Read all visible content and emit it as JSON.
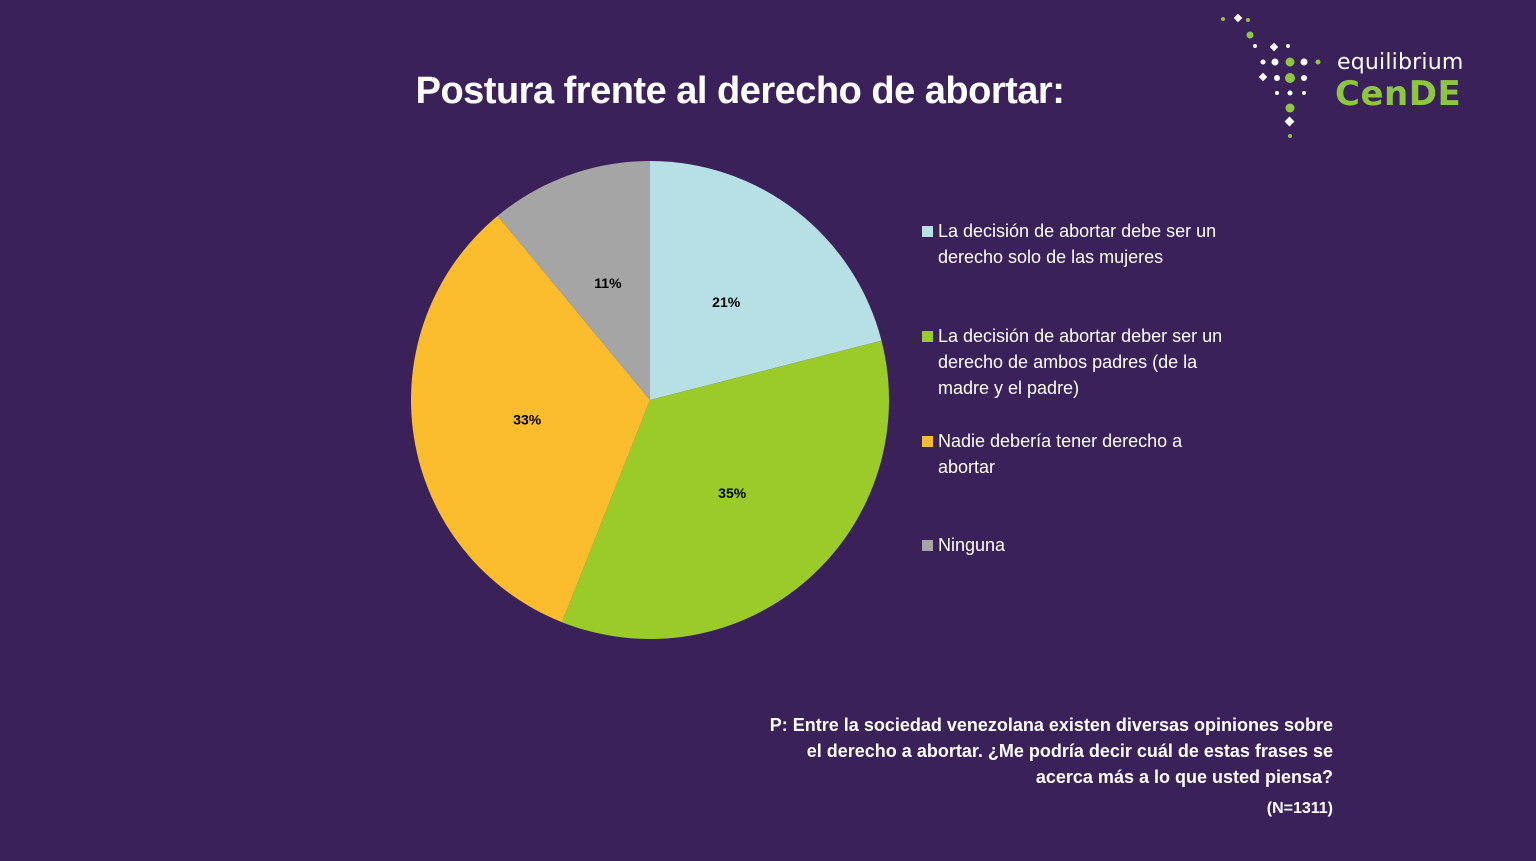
{
  "title": "Postura frente al derecho de abortar:",
  "logo": {
    "text_top": "equilibrium",
    "text_main": "CenDE"
  },
  "colors": {
    "background": "#3b2159",
    "logo_green": "#8dc63f"
  },
  "chart_data": {
    "type": "pie",
    "title": "Postura frente al derecho de abortar:",
    "slices": [
      {
        "label": "La decisión de abortar debe ser un derecho solo de las mujeres",
        "value": 21,
        "display": "21%",
        "color": "#b7dfe6"
      },
      {
        "label": "La decisión de abortar deber ser un derecho de ambos padres (de la madre y el padre)",
        "value": 35,
        "display": "35%",
        "color": "#9acb28"
      },
      {
        "label": "Nadie debería tener derecho a abortar",
        "value": 33,
        "display": "33%",
        "color": "#fbbd2e"
      },
      {
        "label": "Ninguna",
        "value": 11,
        "display": "11%",
        "color": "#a5a5a5"
      }
    ],
    "start_angle": "12 o'clock",
    "direction": "clockwise",
    "legend_position": "right"
  },
  "legend": {
    "items": [
      {
        "label": "La decisión de abortar debe ser un derecho solo de las mujeres"
      },
      {
        "label": "La decisión de abortar deber ser un derecho de ambos padres (de la madre y el padre)"
      },
      {
        "label": "Nadie debería tener derecho a abortar"
      },
      {
        "label": "Ninguna"
      }
    ]
  },
  "question": "P: Entre la sociedad venezolana existen diversas opiniones sobre el derecho a abortar. ¿Me podría decir cuál de estas frases se acerca más a lo que usted piensa?",
  "sample_note": "(N=1311)"
}
